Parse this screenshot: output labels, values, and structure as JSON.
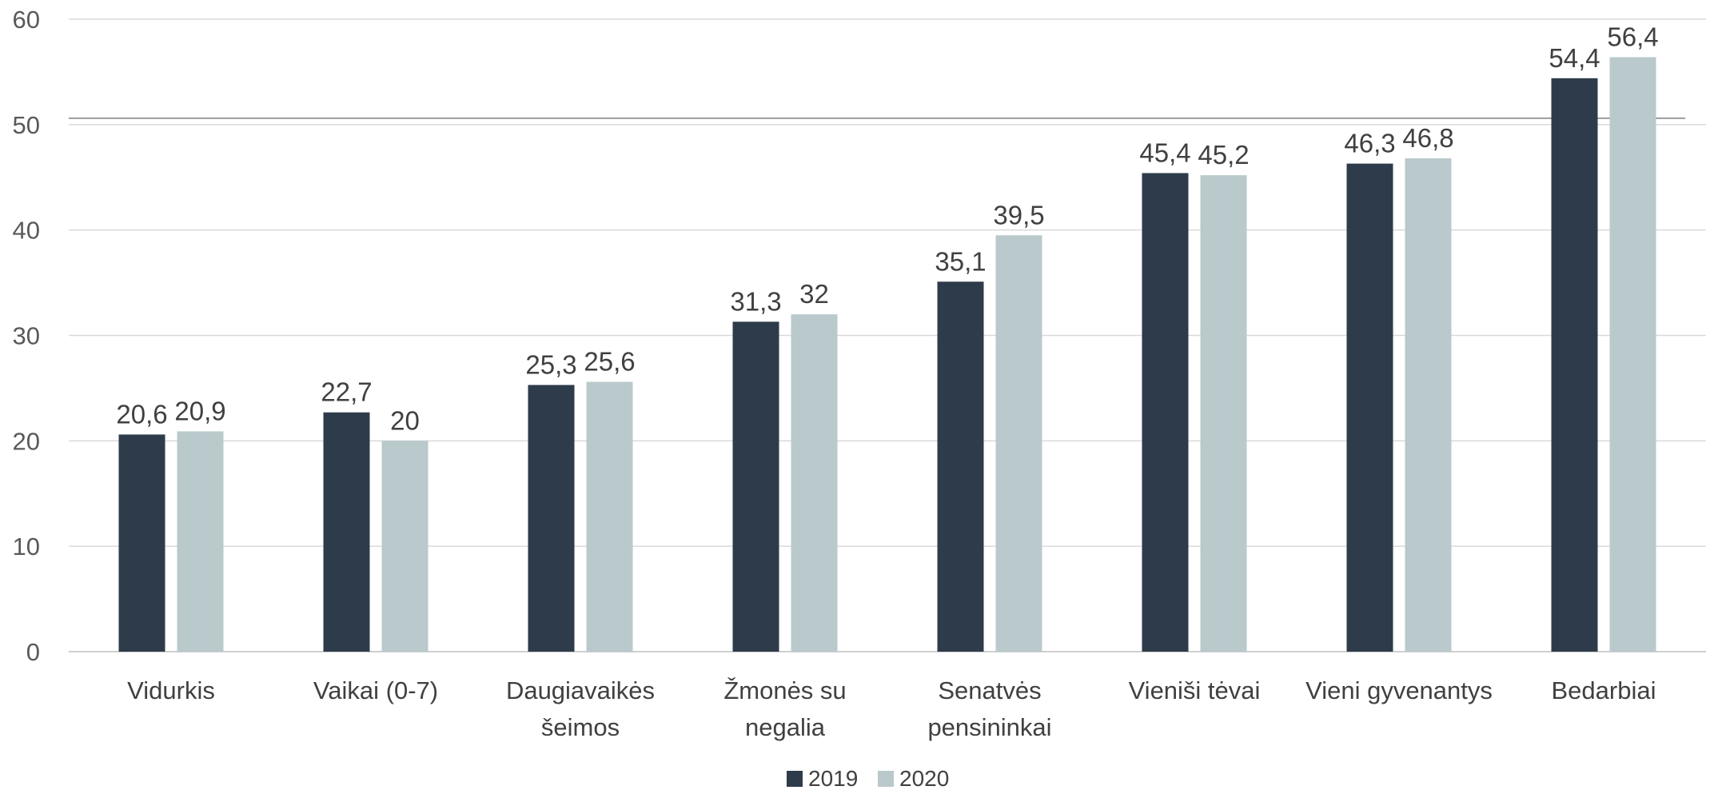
{
  "chart_data": {
    "type": "bar",
    "title": "",
    "xlabel": "",
    "ylabel": "",
    "ylim": [
      0,
      60
    ],
    "yticks": [
      0,
      10,
      20,
      30,
      40,
      50,
      60
    ],
    "grid": true,
    "legend_position": "bottom",
    "categories": [
      [
        "Vidurkis"
      ],
      [
        "Vaikai (0-7)"
      ],
      [
        "Daugiavaikės",
        "šeimos"
      ],
      [
        "Žmonės su",
        "negalia"
      ],
      [
        "Senatvės",
        "pensininkai"
      ],
      [
        "Vieniši tėvai"
      ],
      [
        "Vieni gyvenantys"
      ],
      [
        "Bedarbiai"
      ]
    ],
    "series": [
      {
        "name": "2019",
        "color": "#2e3b4a",
        "values": [
          20.6,
          22.7,
          25.3,
          31.3,
          35.1,
          45.4,
          46.3,
          54.4
        ],
        "labels": [
          "20,6",
          "22,7",
          "25,3",
          "31,3",
          "35,1",
          "45,4",
          "46,3",
          "54,4"
        ]
      },
      {
        "name": "2020",
        "color": "#b9c9cc",
        "values": [
          20.9,
          20,
          25.6,
          32,
          39.5,
          45.2,
          46.8,
          56.4
        ],
        "labels": [
          "20,9",
          "20",
          "25,6",
          "32",
          "39,5",
          "45,2",
          "46,8",
          "56,4"
        ]
      }
    ],
    "colors": {
      "grid": "#d9d9d9",
      "axis": "#bfbfbf",
      "reference_line": "#7f7f7f"
    }
  }
}
